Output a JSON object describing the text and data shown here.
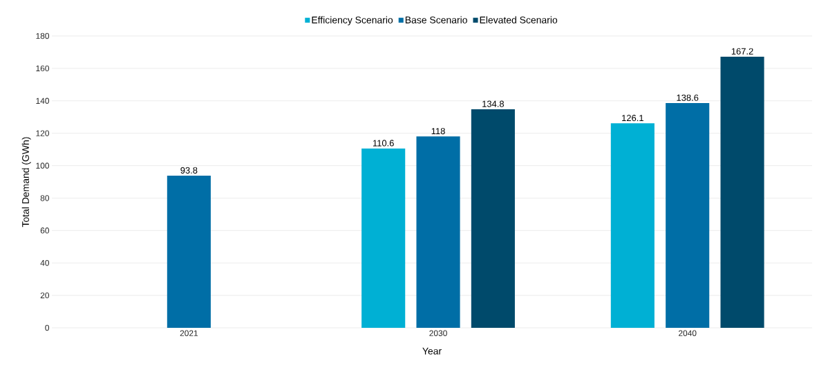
{
  "chart_data": {
    "type": "bar",
    "xlabel": "Year",
    "ylabel": "Total Demand (GWh)",
    "categories": [
      "2021",
      "2030",
      "2040"
    ],
    "series": [
      {
        "name": "Efficiency Scenario",
        "color": "#00b0d4",
        "values": [
          null,
          110.6,
          126.1
        ],
        "value_labels": [
          null,
          "110.6",
          "126.1"
        ]
      },
      {
        "name": "Base Scenario",
        "color": "#006ea6",
        "values": [
          93.8,
          118,
          138.6
        ],
        "value_labels": [
          "93.8",
          "118",
          "138.6"
        ]
      },
      {
        "name": "Elevated Scenario",
        "color": "#004a6b",
        "values": [
          null,
          134.8,
          167.2
        ],
        "value_labels": [
          null,
          "134.8",
          "167.2"
        ]
      }
    ],
    "ylim": [
      0,
      180
    ],
    "yticks": [
      0,
      20,
      40,
      60,
      80,
      100,
      120,
      140,
      160,
      180
    ],
    "grid": "y",
    "legend": "top"
  }
}
